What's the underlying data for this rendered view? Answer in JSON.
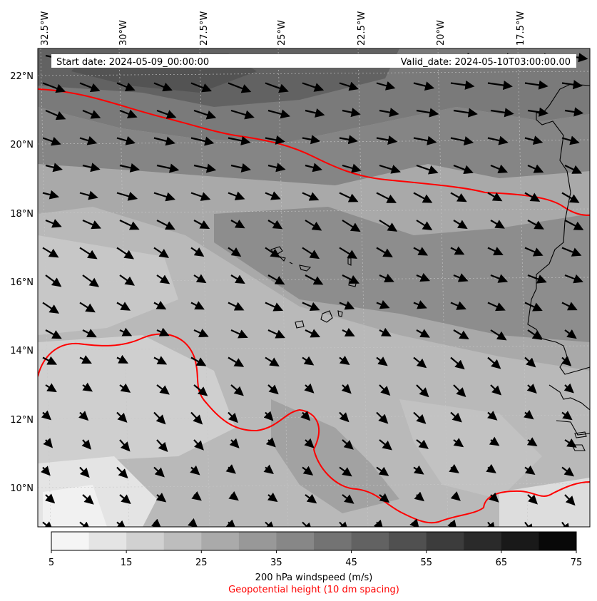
{
  "map": {
    "start_label": "Start date: 2024-05-09_00:00:00",
    "valid_label": "Valid_date: 2024-05-10T03:00:00.00",
    "longitude_labels": [
      "32.5°W",
      "30°W",
      "27.5°W",
      "25°W",
      "22.5°W",
      "20°W",
      "17.5°W"
    ],
    "latitude_labels": [
      "22°N",
      "20°N",
      "18°N",
      "16°N",
      "14°N",
      "12°N",
      "10°N"
    ],
    "lon_range": [
      -32.5,
      -15.2
    ],
    "lat_range": [
      8.9,
      22.8
    ]
  },
  "colorbar": {
    "ticks": [
      "5",
      "15",
      "25",
      "35",
      "45",
      "55",
      "65",
      "75"
    ],
    "levels": [
      5,
      10,
      15,
      20,
      25,
      30,
      35,
      40,
      45,
      50,
      55,
      60,
      65,
      70,
      75
    ],
    "title": "200 hPa windspeed (m/s)",
    "subtitle": "Geopotential height (10 dm spacing)",
    "subtitle_color": "#ff0000",
    "colors": [
      "#f5f5f5",
      "#e4e4e4",
      "#d1d1d1",
      "#bdbdbd",
      "#aaaaaa",
      "#989898",
      "#878787",
      "#737373",
      "#626262",
      "#505050",
      "#3c3c3c",
      "#2a2a2a",
      "#191919",
      "#080808"
    ]
  },
  "contour_color": "#ff0000",
  "coastline_color": "#000000"
}
